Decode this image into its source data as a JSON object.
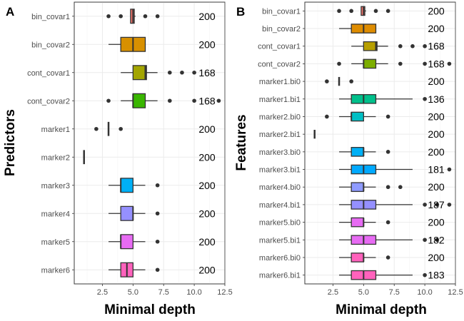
{
  "chart_data": [
    {
      "type": "boxplot",
      "panel_label": "A",
      "ylabel": "Predictors",
      "xlabel": "Minimal depth",
      "xlim": [
        0.2,
        12.5
      ],
      "xticks": [
        "2.5",
        "5.0",
        "7.5",
        "10.0",
        "12.5"
      ],
      "xtick_values": [
        2.5,
        5.0,
        7.5,
        10.0,
        12.5
      ],
      "categories": [
        {
          "name": "bin_covar1",
          "color": "#F8766D",
          "whisker_low": 4.8,
          "q1": 4.8,
          "median": 5.0,
          "q3": 5.1,
          "whisker_high": 5.2,
          "outliers": [
            3.0,
            4.0,
            6.0,
            7.0
          ],
          "count": "200"
        },
        {
          "name": "bin_covar2",
          "color": "#D89000",
          "whisker_low": 3.0,
          "q1": 4.0,
          "median": 5.0,
          "q3": 6.0,
          "whisker_high": 6.0,
          "outliers": [],
          "count": "200"
        },
        {
          "name": "cont_covar1",
          "color": "#A3A500",
          "whisker_low": 4.0,
          "q1": 5.0,
          "median": 6.0,
          "q3": 6.1,
          "whisker_high": 7.0,
          "outliers": [
            8.0,
            9.0,
            10.0
          ],
          "count": "168"
        },
        {
          "name": "cont_covar2",
          "color": "#39B600",
          "whisker_low": 4.0,
          "q1": 5.0,
          "median": 5.0,
          "q3": 6.0,
          "whisker_high": 7.0,
          "outliers": [
            3.0,
            8.0,
            10.0,
            12.0
          ],
          "count": "168"
        },
        {
          "name": "marker1",
          "color": "#00BF7D",
          "whisker_low": 3.0,
          "q1": 3.0,
          "median": 3.0,
          "q3": 3.0,
          "whisker_high": 3.0,
          "outliers": [
            2.0,
            4.0
          ],
          "count": "200"
        },
        {
          "name": "marker2",
          "color": "#00BFC4",
          "whisker_low": 1.0,
          "q1": 1.0,
          "median": 1.0,
          "q3": 1.0,
          "whisker_high": 1.0,
          "outliers": [],
          "count": "200"
        },
        {
          "name": "marker3",
          "color": "#00B0F6",
          "whisker_low": 3.0,
          "q1": 4.0,
          "median": 4.0,
          "q3": 5.0,
          "whisker_high": 6.0,
          "outliers": [
            7.0
          ],
          "count": "200"
        },
        {
          "name": "marker4",
          "color": "#9590FF",
          "whisker_low": 3.0,
          "q1": 4.0,
          "median": 5.0,
          "q3": 5.0,
          "whisker_high": 6.0,
          "outliers": [
            7.0
          ],
          "count": "200"
        },
        {
          "name": "marker5",
          "color": "#E76BF3",
          "whisker_low": 3.0,
          "q1": 4.0,
          "median": 4.0,
          "q3": 5.0,
          "whisker_high": 6.0,
          "outliers": [
            7.0
          ],
          "count": "200"
        },
        {
          "name": "marker6",
          "color": "#FF62BC",
          "whisker_low": 3.0,
          "q1": 4.0,
          "median": 4.5,
          "q3": 5.0,
          "whisker_high": 6.0,
          "outliers": [
            7.0
          ],
          "count": "200"
        }
      ]
    },
    {
      "type": "boxplot",
      "panel_label": "B",
      "ylabel": "Features",
      "xlabel": "Minimal depth",
      "xlim": [
        0.2,
        12.5
      ],
      "xticks": [
        "2.5",
        "5.0",
        "7.5",
        "10.0",
        "12.5"
      ],
      "xtick_values": [
        2.5,
        5.0,
        7.5,
        10.0,
        12.5
      ],
      "categories": [
        {
          "name": "bin_covar1",
          "color": "#F8766D",
          "whisker_low": 4.8,
          "q1": 4.8,
          "median": 5.0,
          "q3": 5.1,
          "whisker_high": 5.2,
          "outliers": [
            3.0,
            4.0,
            6.0,
            7.0
          ],
          "count": "200"
        },
        {
          "name": "bin_covar2",
          "color": "#DE8C00",
          "whisker_low": 3.0,
          "q1": 4.0,
          "median": 5.0,
          "q3": 6.0,
          "whisker_high": 6.0,
          "outliers": [],
          "count": "200"
        },
        {
          "name": "cont_covar1",
          "color": "#B79F00",
          "whisker_low": 4.0,
          "q1": 5.0,
          "median": 6.0,
          "q3": 6.1,
          "whisker_high": 7.0,
          "outliers": [
            8.0,
            9.0,
            10.0
          ],
          "count": "168"
        },
        {
          "name": "cont_covar2",
          "color": "#7CAE00",
          "whisker_low": 4.0,
          "q1": 5.0,
          "median": 5.0,
          "q3": 6.0,
          "whisker_high": 7.0,
          "outliers": [
            3.0,
            8.0,
            10.0,
            12.0
          ],
          "count": "168"
        },
        {
          "name": "marker1.bi0",
          "color": "#00BA38",
          "whisker_low": 3.0,
          "q1": 3.0,
          "median": 3.0,
          "q3": 3.0,
          "whisker_high": 3.0,
          "outliers": [
            2.0,
            4.0
          ],
          "count": "200"
        },
        {
          "name": "marker1.bi1",
          "color": "#00C08B",
          "whisker_low": 3.0,
          "q1": 4.0,
          "median": 5.0,
          "q3": 6.0,
          "whisker_high": 9.0,
          "outliers": [
            10.0
          ],
          "count": "136"
        },
        {
          "name": "marker2.bi0",
          "color": "#00BFC4",
          "whisker_low": 3.0,
          "q1": 4.0,
          "median": 4.0,
          "q3": 5.0,
          "whisker_high": 6.0,
          "outliers": [
            2.0,
            7.0
          ],
          "count": "200"
        },
        {
          "name": "marker2.bi1",
          "color": "#00B4F0",
          "whisker_low": 1.0,
          "q1": 1.0,
          "median": 1.0,
          "q3": 1.0,
          "whisker_high": 1.0,
          "outliers": [],
          "count": "200"
        },
        {
          "name": "marker3.bi0",
          "color": "#00B0F6",
          "whisker_low": 3.0,
          "q1": 4.0,
          "median": 5.0,
          "q3": 5.0,
          "whisker_high": 6.0,
          "outliers": [
            7.0
          ],
          "count": "200"
        },
        {
          "name": "marker3.bi1",
          "color": "#00A9FF",
          "whisker_low": 3.0,
          "q1": 4.0,
          "median": 5.0,
          "q3": 6.0,
          "whisker_high": 9.0,
          "outliers": [
            12.0
          ],
          "count": "181"
        },
        {
          "name": "marker4.bi0",
          "color": "#8F9BFF",
          "whisker_low": 3.0,
          "q1": 4.0,
          "median": 5.0,
          "q3": 5.0,
          "whisker_high": 6.0,
          "outliers": [
            7.0,
            8.0
          ],
          "count": "200"
        },
        {
          "name": "marker4.bi1",
          "color": "#9590FF",
          "whisker_low": 3.0,
          "q1": 4.0,
          "median": 5.0,
          "q3": 6.0,
          "whisker_high": 9.0,
          "outliers": [
            10.0,
            11.0,
            12.0
          ],
          "count": "187"
        },
        {
          "name": "marker5.bi0",
          "color": "#E76BF3",
          "whisker_low": 3.0,
          "q1": 4.0,
          "median": 5.0,
          "q3": 5.0,
          "whisker_high": 6.0,
          "outliers": [
            7.0
          ],
          "count": "200"
        },
        {
          "name": "marker5.bi1",
          "color": "#E76BF3",
          "whisker_low": 3.0,
          "q1": 4.0,
          "median": 5.0,
          "q3": 6.0,
          "whisker_high": 9.0,
          "outliers": [
            10.0,
            11.0
          ],
          "count": "182"
        },
        {
          "name": "marker6.bi0",
          "color": "#FF62BC",
          "whisker_low": 3.0,
          "q1": 4.0,
          "median": 5.0,
          "q3": 5.0,
          "whisker_high": 6.0,
          "outliers": [
            7.0
          ],
          "count": "200"
        },
        {
          "name": "marker6.bi1",
          "color": "#FF62BC",
          "whisker_low": 3.0,
          "q1": 4.0,
          "median": 5.0,
          "q3": 6.0,
          "whisker_high": 9.0,
          "outliers": [
            10.0
          ],
          "count": "183"
        }
      ]
    }
  ]
}
